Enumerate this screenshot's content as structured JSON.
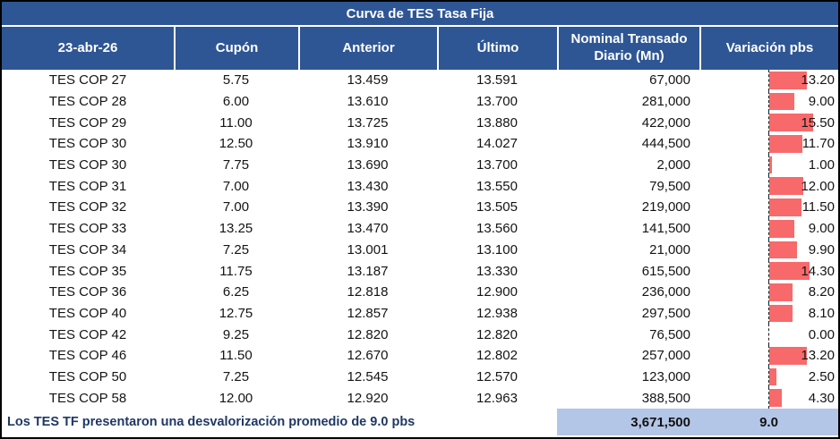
{
  "table": {
    "title": "Curva de TES Tasa Fija",
    "headers": [
      "23-abr-26",
      "Cupón",
      "Anterior",
      "Último",
      "Nominal Transado Diario (Mn)",
      "Variación pbs"
    ],
    "rows": [
      {
        "name": "TES COP 27",
        "cupon": "5.75",
        "anterior": "13.459",
        "ultimo": "13.591",
        "nominal": "67,000",
        "variacion": "13.20",
        "variacion_value": 13.2
      },
      {
        "name": "TES COP 28",
        "cupon": "6.00",
        "anterior": "13.610",
        "ultimo": "13.700",
        "nominal": "281,000",
        "variacion": "9.00",
        "variacion_value": 9.0
      },
      {
        "name": "TES COP 29",
        "cupon": "11.00",
        "anterior": "13.725",
        "ultimo": "13.880",
        "nominal": "422,000",
        "variacion": "15.50",
        "variacion_value": 15.5
      },
      {
        "name": "TES COP 30",
        "cupon": "12.50",
        "anterior": "13.910",
        "ultimo": "14.027",
        "nominal": "444,500",
        "variacion": "11.70",
        "variacion_value": 11.7
      },
      {
        "name": "TES COP 30",
        "cupon": "7.75",
        "anterior": "13.690",
        "ultimo": "13.700",
        "nominal": "2,000",
        "variacion": "1.00",
        "variacion_value": 1.0
      },
      {
        "name": "TES COP 31",
        "cupon": "7.00",
        "anterior": "13.430",
        "ultimo": "13.550",
        "nominal": "79,500",
        "variacion": "12.00",
        "variacion_value": 12.0
      },
      {
        "name": "TES COP 32",
        "cupon": "7.00",
        "anterior": "13.390",
        "ultimo": "13.505",
        "nominal": "219,000",
        "variacion": "11.50",
        "variacion_value": 11.5
      },
      {
        "name": "TES COP 33",
        "cupon": "13.25",
        "anterior": "13.470",
        "ultimo": "13.560",
        "nominal": "141,500",
        "variacion": "9.00",
        "variacion_value": 9.0
      },
      {
        "name": "TES COP 34",
        "cupon": "7.25",
        "anterior": "13.001",
        "ultimo": "13.100",
        "nominal": "21,000",
        "variacion": "9.90",
        "variacion_value": 9.9
      },
      {
        "name": "TES COP 35",
        "cupon": "11.75",
        "anterior": "13.187",
        "ultimo": "13.330",
        "nominal": "615,500",
        "variacion": "14.30",
        "variacion_value": 14.3
      },
      {
        "name": "TES COP 36",
        "cupon": "6.25",
        "anterior": "12.818",
        "ultimo": "12.900",
        "nominal": "236,000",
        "variacion": "8.20",
        "variacion_value": 8.2
      },
      {
        "name": "TES COP 40",
        "cupon": "12.75",
        "anterior": "12.857",
        "ultimo": "12.938",
        "nominal": "297,500",
        "variacion": "8.10",
        "variacion_value": 8.1
      },
      {
        "name": "TES COP 42",
        "cupon": "9.25",
        "anterior": "12.820",
        "ultimo": "12.820",
        "nominal": "76,500",
        "variacion": "0.00",
        "variacion_value": 0.0
      },
      {
        "name": "TES COP 46",
        "cupon": "11.50",
        "anterior": "12.670",
        "ultimo": "12.802",
        "nominal": "257,000",
        "variacion": "13.20",
        "variacion_value": 13.2
      },
      {
        "name": "TES COP 50",
        "cupon": "7.25",
        "anterior": "12.545",
        "ultimo": "12.570",
        "nominal": "123,000",
        "variacion": "2.50",
        "variacion_value": 2.5
      },
      {
        "name": "TES COP 58",
        "cupon": "12.00",
        "anterior": "12.920",
        "ultimo": "12.963",
        "nominal": "388,500",
        "variacion": "4.30",
        "variacion_value": 4.3
      }
    ],
    "footer": {
      "note": "Los TES TF presentaron una desvalorización promedio de 9.0 pbs",
      "total_nominal": "3,671,500",
      "avg_variacion": "9.0"
    }
  },
  "chart_data": {
    "type": "table",
    "title": "Curva de TES Tasa Fija",
    "columns": [
      "23-abr-26",
      "Cupón",
      "Anterior",
      "Último",
      "Nominal Transado Diario (Mn)",
      "Variación pbs"
    ],
    "rows": [
      [
        "TES COP 27",
        5.75,
        13.459,
        13.591,
        67000,
        13.2
      ],
      [
        "TES COP 28",
        6.0,
        13.61,
        13.7,
        281000,
        9.0
      ],
      [
        "TES COP 29",
        11.0,
        13.725,
        13.88,
        422000,
        15.5
      ],
      [
        "TES COP 30",
        12.5,
        13.91,
        14.027,
        444500,
        11.7
      ],
      [
        "TES COP 30",
        7.75,
        13.69,
        13.7,
        2000,
        1.0
      ],
      [
        "TES COP 31",
        7.0,
        13.43,
        13.55,
        79500,
        12.0
      ],
      [
        "TES COP 32",
        7.0,
        13.39,
        13.505,
        219000,
        11.5
      ],
      [
        "TES COP 33",
        13.25,
        13.47,
        13.56,
        141500,
        9.0
      ],
      [
        "TES COP 34",
        7.25,
        13.001,
        13.1,
        21000,
        9.9
      ],
      [
        "TES COP 35",
        11.75,
        13.187,
        13.33,
        615500,
        14.3
      ],
      [
        "TES COP 36",
        6.25,
        12.818,
        12.9,
        236000,
        8.2
      ],
      [
        "TES COP 40",
        12.75,
        12.857,
        12.938,
        297500,
        8.1
      ],
      [
        "TES COP 42",
        9.25,
        12.82,
        12.82,
        76500,
        0.0
      ],
      [
        "TES COP 46",
        11.5,
        12.67,
        12.802,
        257000,
        13.2
      ],
      [
        "TES COP 50",
        7.25,
        12.545,
        12.57,
        123000,
        2.5
      ],
      [
        "TES COP 58",
        12.0,
        12.92,
        12.963,
        388500,
        4.3
      ]
    ],
    "totals": {
      "nominal_transado_diario": 3671500,
      "variacion_promedio_pbs": 9.0
    },
    "embedded_bars": {
      "column": "Variación pbs",
      "direction": "positive-right-from-dashed-axis",
      "color": "#F8696B"
    }
  },
  "colors": {
    "header_blue": "#2F5694",
    "bar_red": "#F8696B",
    "footer_highlight": "#B4C6E7",
    "footer_text_navy": "#1F3864",
    "border_black": "#000000"
  }
}
